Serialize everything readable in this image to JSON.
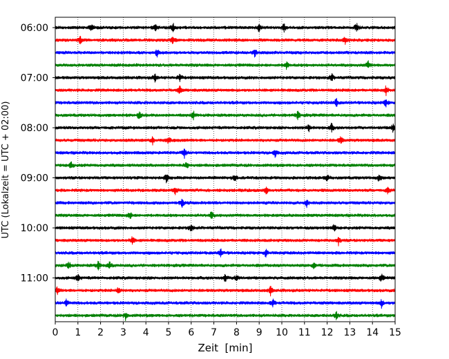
{
  "chart_data": {
    "type": "line",
    "subtype": "helicorder",
    "xlabel": "Zeit  [min]",
    "ylabel": "UTC (Lokalzeit = UTC + 02:00)",
    "xlim": [
      0,
      15
    ],
    "x_ticks": [
      0,
      1,
      2,
      3,
      4,
      5,
      6,
      7,
      8,
      9,
      10,
      11,
      12,
      13,
      14,
      15
    ],
    "grid": "vertical dotted at each minute",
    "trace_colors": [
      "#000000",
      "#ff0000",
      "#0000ff",
      "#008000"
    ],
    "start_time": "06:00",
    "trace_interval_min": 15,
    "trace_count": 24,
    "y_tick_labels": [
      "06:00",
      "07:00",
      "08:00",
      "09:00",
      "10:00",
      "11:00"
    ],
    "events_note": "Approximate positions (minutes) of larger visible spikes per trace",
    "traces": [
      {
        "row": 0,
        "start": "06:00",
        "spikes": [
          1.6,
          4.4,
          5.2,
          9.0,
          10.1,
          13.3
        ]
      },
      {
        "row": 1,
        "start": "06:15",
        "spikes": [
          1.1,
          5.2,
          12.8
        ]
      },
      {
        "row": 2,
        "start": "06:30",
        "spikes": [
          4.5,
          8.8
        ]
      },
      {
        "row": 3,
        "start": "06:45",
        "spikes": [
          10.2,
          13.8
        ]
      },
      {
        "row": 4,
        "start": "07:00",
        "spikes": [
          4.4,
          5.5,
          12.2
        ]
      },
      {
        "row": 5,
        "start": "07:15",
        "spikes": [
          5.5,
          14.6
        ]
      },
      {
        "row": 6,
        "start": "07:30",
        "spikes": [
          12.4,
          14.6
        ]
      },
      {
        "row": 7,
        "start": "07:45",
        "spikes": [
          3.7,
          6.1,
          10.7
        ]
      },
      {
        "row": 8,
        "start": "08:00",
        "spikes": [
          11.2,
          12.2,
          14.9
        ]
      },
      {
        "row": 9,
        "start": "08:15",
        "spikes": [
          4.3,
          5.0,
          12.6
        ]
      },
      {
        "row": 10,
        "start": "08:30",
        "spikes": [
          5.7,
          9.7
        ]
      },
      {
        "row": 11,
        "start": "08:45",
        "spikes": [
          0.7,
          5.8
        ]
      },
      {
        "row": 12,
        "start": "09:00",
        "spikes": [
          4.9,
          7.9,
          12.0,
          14.3
        ]
      },
      {
        "row": 13,
        "start": "09:15",
        "spikes": [
          5.3,
          9.3,
          14.7
        ]
      },
      {
        "row": 14,
        "start": "09:30",
        "spikes": [
          5.6,
          11.1
        ]
      },
      {
        "row": 15,
        "start": "09:45",
        "spikes": [
          3.3,
          6.9
        ]
      },
      {
        "row": 16,
        "start": "10:00",
        "spikes": [
          6.0,
          12.3
        ]
      },
      {
        "row": 17,
        "start": "10:15",
        "spikes": [
          3.4,
          12.5
        ]
      },
      {
        "row": 18,
        "start": "10:30",
        "spikes": [
          7.3,
          9.3
        ]
      },
      {
        "row": 19,
        "start": "10:45",
        "spikes": [
          0.6,
          1.9,
          2.4,
          11.4
        ]
      },
      {
        "row": 20,
        "start": "11:00",
        "spikes": [
          1.0,
          7.5,
          8.0,
          14.4
        ]
      },
      {
        "row": 21,
        "start": "11:15",
        "spikes": [
          0.1,
          2.8,
          9.5
        ]
      },
      {
        "row": 22,
        "start": "11:30",
        "spikes": [
          0.5,
          9.6,
          14.4
        ]
      },
      {
        "row": 23,
        "start": "11:45",
        "spikes": [
          3.1,
          12.4
        ]
      }
    ]
  }
}
